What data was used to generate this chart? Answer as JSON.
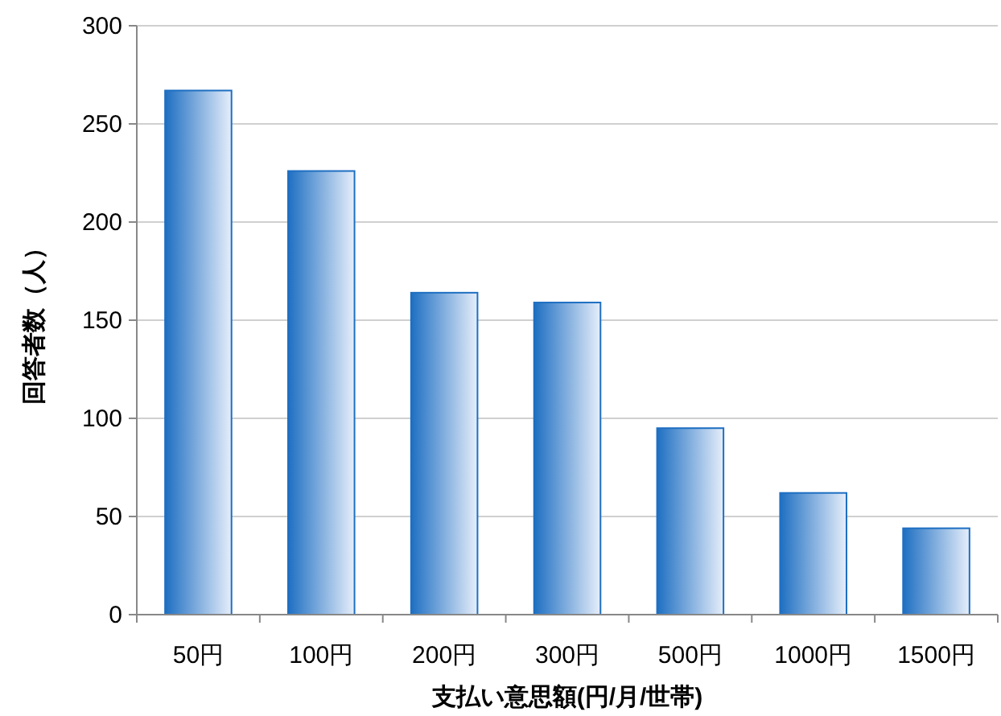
{
  "chart_data": {
    "type": "bar",
    "xlabel": "支払い意思額(円/月/世帯)",
    "ylabel": "回答者数（人）",
    "categories": [
      "50円",
      "100円",
      "200円",
      "300円",
      "500円",
      "1000円",
      "1500円"
    ],
    "values": [
      267,
      226,
      164,
      159,
      95,
      62,
      44
    ],
    "color": "#1e6fc2",
    "ylim": [
      0,
      300
    ],
    "yticks": [
      0,
      50,
      100,
      150,
      200,
      250,
      300
    ],
    "grid": "y"
  }
}
